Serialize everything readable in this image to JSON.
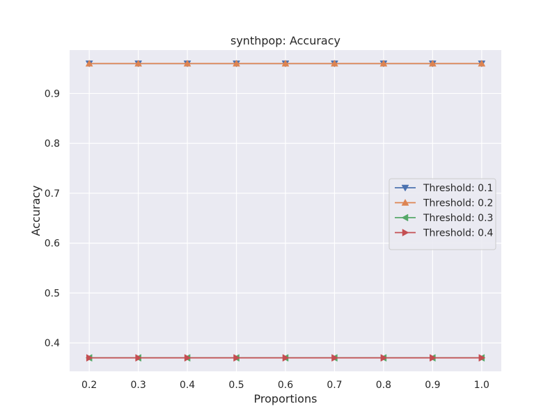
{
  "chart_data": {
    "type": "line",
    "title": "synthpop: Accuracy",
    "xlabel": "Proportions",
    "ylabel": "Accuracy",
    "x": [
      0.2,
      0.3,
      0.4,
      0.5,
      0.6,
      0.7,
      0.8,
      0.9,
      1.0
    ],
    "x_tick_labels": [
      "0.2",
      "0.3",
      "0.4",
      "0.5",
      "0.6",
      "0.7",
      "0.8",
      "0.9",
      "1.0"
    ],
    "y_ticks": [
      0.4,
      0.5,
      0.6,
      0.7,
      0.8,
      0.9
    ],
    "y_tick_labels": [
      "0.4",
      "0.5",
      "0.6",
      "0.7",
      "0.8",
      "0.9"
    ],
    "xlim": [
      0.16,
      1.04
    ],
    "ylim": [
      0.343,
      0.987
    ],
    "grid": true,
    "legend_position": "center-right",
    "series": [
      {
        "name": "Threshold: 0.1",
        "values": [
          0.96,
          0.96,
          0.96,
          0.96,
          0.96,
          0.96,
          0.96,
          0.96,
          0.96
        ],
        "color": "#4c72b0",
        "marker": "triangle-down"
      },
      {
        "name": "Threshold: 0.2",
        "values": [
          0.96,
          0.96,
          0.96,
          0.96,
          0.96,
          0.96,
          0.96,
          0.96,
          0.96
        ],
        "color": "#dd8452",
        "marker": "triangle-up"
      },
      {
        "name": "Threshold: 0.3",
        "values": [
          0.37,
          0.37,
          0.37,
          0.37,
          0.37,
          0.37,
          0.37,
          0.37,
          0.37
        ],
        "color": "#55a868",
        "marker": "triangle-left"
      },
      {
        "name": "Threshold: 0.4",
        "values": [
          0.37,
          0.37,
          0.37,
          0.37,
          0.37,
          0.37,
          0.37,
          0.37,
          0.37
        ],
        "color": "#c44e52",
        "marker": "triangle-right"
      }
    ],
    "plot_background": "#eaeaf2",
    "grid_color": "#ffffff"
  }
}
